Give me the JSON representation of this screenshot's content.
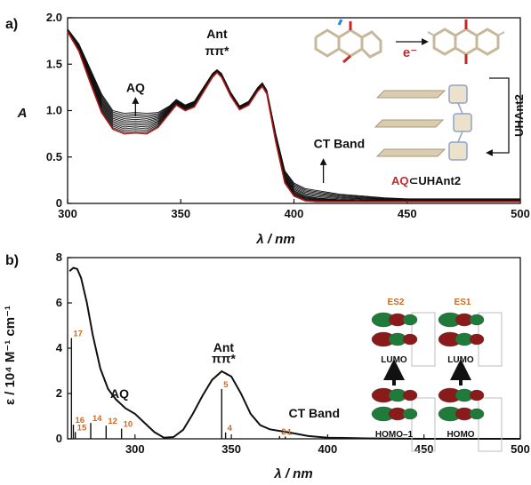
{
  "figure": {
    "panel_a_label": "a)",
    "panel_b_label": "b)",
    "top_x_label": "λ / nm",
    "top_y_label": "A",
    "bottom_x_label": "λ / nm",
    "bottom_y_label": "ε / 10⁴ M⁻¹ cm⁻¹"
  },
  "chart_data": [
    {
      "type": "line",
      "panel": "a",
      "xlabel": "λ / nm",
      "ylabel": "A",
      "xlim": [
        300,
        500
      ],
      "ylim": [
        0,
        2.0
      ],
      "xticks": [
        300,
        350,
        400,
        450,
        500
      ],
      "yticks": [
        0,
        0.5,
        1.0,
        1.5,
        2.0
      ],
      "ytick_labels": [
        "0",
        "0.5",
        "1.0",
        "1.5",
        "2.0"
      ],
      "grid": false,
      "series_colors": [
        "#111111",
        "#b01818"
      ],
      "x": [
        300,
        305,
        310,
        315,
        320,
        325,
        330,
        335,
        340,
        345,
        348,
        352,
        356,
        360,
        364,
        366,
        368,
        372,
        376,
        380,
        384,
        386,
        388,
        392,
        396,
        400,
        405,
        410,
        415,
        420,
        430,
        440,
        450,
        470,
        500
      ],
      "series": [
        {
          "values": [
            1.88,
            1.72,
            1.45,
            1.18,
            1.0,
            0.97,
            0.98,
            0.97,
            0.98,
            1.05,
            1.12,
            1.06,
            1.1,
            1.25,
            1.4,
            1.44,
            1.4,
            1.2,
            1.05,
            1.1,
            1.25,
            1.3,
            1.22,
            0.75,
            0.35,
            0.22,
            0.16,
            0.14,
            0.12,
            0.1,
            0.08,
            0.06,
            0.05,
            0.05,
            0.05
          ]
        },
        {
          "values": [
            1.86,
            1.68,
            1.38,
            1.08,
            0.9,
            0.86,
            0.87,
            0.86,
            0.9,
            1.01,
            1.09,
            1.03,
            1.07,
            1.22,
            1.38,
            1.42,
            1.38,
            1.18,
            1.03,
            1.08,
            1.23,
            1.28,
            1.2,
            0.7,
            0.28,
            0.14,
            0.08,
            0.06,
            0.05,
            0.04,
            0.03,
            0.03,
            0.03,
            0.03,
            0.03
          ]
        },
        {
          "values": [
            1.85,
            1.64,
            1.3,
            0.98,
            0.8,
            0.75,
            0.76,
            0.75,
            0.82,
            0.97,
            1.06,
            1.0,
            1.04,
            1.2,
            1.36,
            1.41,
            1.36,
            1.16,
            1.01,
            1.06,
            1.21,
            1.26,
            1.18,
            0.66,
            0.22,
            0.08,
            0.03,
            0.02,
            0.02,
            0.02,
            0.02,
            0.02,
            0.02,
            0.02,
            0.02
          ]
        }
      ],
      "annotations": [
        {
          "text": "AQ",
          "x": 330,
          "y": 1.2
        },
        {
          "text": "Ant",
          "x": 366,
          "y": 1.78
        },
        {
          "text": "ππ*",
          "x": 366,
          "y": 1.6
        },
        {
          "text": "CT Band",
          "x": 420,
          "y": 0.6
        }
      ]
    },
    {
      "type": "line",
      "panel": "b",
      "xlabel": "λ / nm",
      "ylabel": "ε / 10⁴ M⁻¹ cm⁻¹",
      "xlim": [
        265,
        500
      ],
      "ylim": [
        0,
        8
      ],
      "xticks": [
        300,
        350,
        400,
        450,
        500
      ],
      "yticks": [
        0,
        2,
        4,
        6,
        8
      ],
      "grid": false,
      "x": [
        266,
        268,
        270,
        272,
        275,
        278,
        282,
        286,
        290,
        295,
        300,
        305,
        310,
        315,
        320,
        325,
        330,
        335,
        340,
        345,
        350,
        355,
        360,
        365,
        370,
        375,
        380,
        385,
        390,
        400,
        420,
        450,
        500
      ],
      "series": [
        {
          "values": [
            7.4,
            7.55,
            7.5,
            7.1,
            6.0,
            4.6,
            3.1,
            2.2,
            1.75,
            1.35,
            1.1,
            0.7,
            0.3,
            0.05,
            0.08,
            0.4,
            1.1,
            1.9,
            2.6,
            2.98,
            2.75,
            2.0,
            1.1,
            0.6,
            0.42,
            0.35,
            0.28,
            0.2,
            0.12,
            0.05,
            0.02,
            0.0,
            0.0
          ]
        }
      ],
      "transitions": [
        {
          "label": "17",
          "x": 267,
          "y": 4.45
        },
        {
          "label": "16",
          "x": 268,
          "y": 0.62
        },
        {
          "label": "15",
          "x": 269,
          "y": 0.3
        },
        {
          "label": "14",
          "x": 277,
          "y": 0.7
        },
        {
          "label": "12",
          "x": 285,
          "y": 0.58
        },
        {
          "label": "10",
          "x": 293,
          "y": 0.45
        },
        {
          "label": "5",
          "x": 345,
          "y": 2.2
        },
        {
          "label": "4",
          "x": 347,
          "y": 0.28
        },
        {
          "label": "2",
          "x": 375,
          "y": 0.12
        },
        {
          "label": "1",
          "x": 378,
          "y": 0.1
        }
      ],
      "annotations": [
        {
          "text": "AQ",
          "x": 292,
          "y": 1.8
        },
        {
          "text": "Ant",
          "x": 346,
          "y": 3.85
        },
        {
          "text": "ππ*",
          "x": 346,
          "y": 3.35
        },
        {
          "text": "CT Band",
          "x": 393,
          "y": 0.95
        }
      ]
    }
  ],
  "insets": {
    "top_arrow_label": "e⁻",
    "top_side_label": "UHAnt2",
    "top_bottom_label_red": "AQ",
    "top_bottom_label_black": "⊂UHAnt2",
    "orbitals": [
      {
        "state": "ES2",
        "upper": "LUMO",
        "lower": "HOMO–1"
      },
      {
        "state": "ES1",
        "upper": "LUMO",
        "lower": "HOMO"
      }
    ]
  }
}
